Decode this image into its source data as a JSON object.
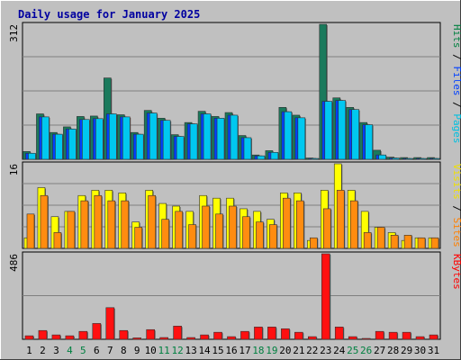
{
  "chart_data": {
    "type": "bar",
    "title": "Daily usage for January 2025",
    "categories": [
      "1",
      "2",
      "3",
      "4",
      "5",
      "6",
      "7",
      "8",
      "9",
      "10",
      "11",
      "12",
      "13",
      "14",
      "15",
      "16",
      "17",
      "18",
      "19",
      "20",
      "21",
      "22",
      "23",
      "24",
      "25",
      "26",
      "27",
      "28",
      "29",
      "30",
      "31"
    ],
    "weekend_days": [
      "4",
      "5",
      "11",
      "12",
      "18",
      "19",
      "25",
      "26"
    ],
    "panels": [
      {
        "id": "top",
        "max_label": "312",
        "ylim": [
          0,
          312
        ],
        "legend": [
          "Pages",
          "Files",
          "Hits"
        ],
        "legend_colors": [
          "#00C0E0",
          "#0040FF",
          "#008040"
        ],
        "series": [
          {
            "name": "Hits",
            "color": "#1A7A5C",
            "values": [
              18,
              105,
              62,
              75,
              99,
              100,
              188,
              103,
              62,
              113,
              95,
              57,
              85,
              111,
              99,
              108,
              55,
              10,
              20,
              120,
              102,
              3,
              312,
              142,
              120,
              85,
              21,
              5,
              4,
              4,
              4
            ]
          },
          {
            "name": "Files",
            "color": "#0040FF",
            "values": [
              14,
              98,
              58,
              70,
              92,
              94,
              105,
              98,
              58,
              107,
              90,
              53,
              82,
              105,
              95,
              102,
              50,
              8,
              16,
              110,
              96,
              2,
              134,
              136,
              115,
              80,
              10,
              3,
              2,
              2,
              2
            ]
          },
          {
            "name": "Pages",
            "color": "#00C8F0",
            "values": [
              14,
              98,
              58,
              70,
              92,
              94,
              105,
              98,
              58,
              107,
              90,
              53,
              82,
              105,
              95,
              102,
              50,
              8,
              16,
              110,
              96,
              2,
              134,
              136,
              115,
              80,
              10,
              3,
              2,
              2,
              2
            ]
          }
        ]
      },
      {
        "id": "middle",
        "max_label": "16",
        "ylim": [
          0,
          16
        ],
        "legend": [
          "Sites",
          "Visits"
        ],
        "legend_colors": [
          "#FF8000",
          "#F0E000"
        ],
        "series": [
          {
            "name": "Visits",
            "color": "#FFFF00",
            "values": [
              2,
              11.5,
              6,
              7,
              10,
              11,
              11,
              10.5,
              5,
              11,
              8.5,
              8,
              7,
              10,
              9.5,
              9.5,
              7.5,
              7,
              5.5,
              10.5,
              10.5,
              1.5,
              11,
              16,
              11,
              7,
              4,
              3,
              1.5,
              2,
              2
            ]
          },
          {
            "name": "Sites",
            "color": "#FF8C10",
            "values": [
              6.5,
              10,
              3,
              7,
              9,
              10,
              9,
              9,
              4,
              10,
              5.5,
              7,
              4.5,
              8,
              6.5,
              8,
              6,
              5,
              4.5,
              9.5,
              9,
              2,
              7.5,
              11,
              9,
              3,
              4,
              2.5,
              2.5,
              2,
              2
            ]
          }
        ]
      },
      {
        "id": "bottom",
        "max_label": "486",
        "ylim": [
          0,
          486
        ],
        "legend": [
          "KBytes"
        ],
        "legend_colors": [
          "#FF0000"
        ],
        "series": [
          {
            "name": "KBytes",
            "color": "#FF1010",
            "values": [
              20,
              50,
              25,
              20,
              45,
              90,
              180,
              50,
              8,
              55,
              10,
              75,
              10,
              25,
              40,
              15,
              45,
              70,
              70,
              60,
              40,
              15,
              486,
              70,
              15,
              5,
              45,
              40,
              40,
              15,
              25
            ]
          }
        ]
      }
    ]
  }
}
